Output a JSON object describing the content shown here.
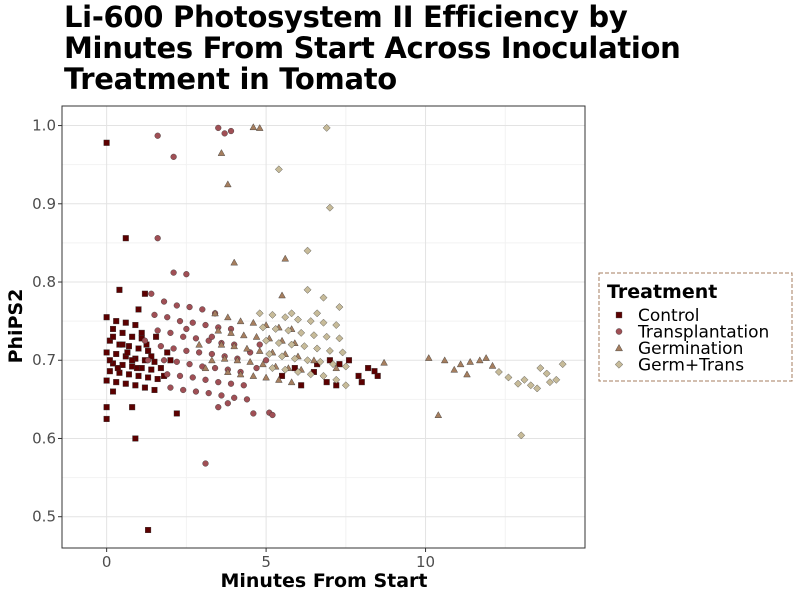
{
  "chart_data": {
    "type": "scatter",
    "title": "Li-600 Photosystem II Efficiency by Minutes From Start Across Inoculation Treatment in Tomato",
    "xlabel": "Minutes From Start",
    "ylabel": "PhiPS2",
    "xlim": [
      -1.4,
      15
    ],
    "ylim": [
      0.46,
      1.025
    ],
    "xticks": [
      0,
      5,
      10
    ],
    "yticks": [
      0.5,
      0.6,
      0.7,
      0.8,
      0.9,
      1.0
    ],
    "ytick_labels": [
      "0.5",
      "0.6",
      "0.7",
      "0.8",
      "0.9",
      "1.0"
    ],
    "grid": true,
    "legend": {
      "title": "Treatment",
      "position": "right"
    },
    "series": [
      {
        "name": "Control",
        "marker": "square",
        "color": "#5c0000",
        "points": [
          [
            0.0,
            0.978
          ],
          [
            0.6,
            0.856
          ],
          [
            1.2,
            0.785
          ],
          [
            0.4,
            0.79
          ],
          [
            1.0,
            0.765
          ],
          [
            0.0,
            0.755
          ],
          [
            0.3,
            0.75
          ],
          [
            0.6,
            0.748
          ],
          [
            0.9,
            0.745
          ],
          [
            0.2,
            0.74
          ],
          [
            0.5,
            0.735
          ],
          [
            0.8,
            0.73
          ],
          [
            1.1,
            0.728
          ],
          [
            0.1,
            0.725
          ],
          [
            0.4,
            0.72
          ],
          [
            0.7,
            0.718
          ],
          [
            1.0,
            0.715
          ],
          [
            1.3,
            0.712
          ],
          [
            0.0,
            0.71
          ],
          [
            0.3,
            0.708
          ],
          [
            0.6,
            0.705
          ],
          [
            0.9,
            0.702
          ],
          [
            1.2,
            0.7
          ],
          [
            1.5,
            0.698
          ],
          [
            0.2,
            0.696
          ],
          [
            0.5,
            0.694
          ],
          [
            0.8,
            0.692
          ],
          [
            1.1,
            0.69
          ],
          [
            1.4,
            0.688
          ],
          [
            0.1,
            0.686
          ],
          [
            0.4,
            0.684
          ],
          [
            0.7,
            0.682
          ],
          [
            1.0,
            0.68
          ],
          [
            1.3,
            0.678
          ],
          [
            1.6,
            0.676
          ],
          [
            0.0,
            0.674
          ],
          [
            0.3,
            0.672
          ],
          [
            0.6,
            0.67
          ],
          [
            0.9,
            0.668
          ],
          [
            1.2,
            0.665
          ],
          [
            1.5,
            0.662
          ],
          [
            0.2,
            0.66
          ],
          [
            0.5,
            0.72
          ],
          [
            0.8,
            0.7
          ],
          [
            1.1,
            0.735
          ],
          [
            1.4,
            0.705
          ],
          [
            1.7,
            0.69
          ],
          [
            1.9,
            0.71
          ],
          [
            2.0,
            0.7
          ],
          [
            1.8,
            0.68
          ],
          [
            0.0,
            0.64
          ],
          [
            0.0,
            0.625
          ],
          [
            0.9,
            0.6
          ],
          [
            0.8,
            0.64
          ],
          [
            2.2,
            0.632
          ],
          [
            1.3,
            0.483
          ],
          [
            0.1,
            0.7
          ],
          [
            0.2,
            0.73
          ],
          [
            0.35,
            0.69
          ],
          [
            0.65,
            0.71
          ],
          [
            0.95,
            0.69
          ],
          [
            1.25,
            0.72
          ],
          [
            1.55,
            0.73
          ],
          [
            5.5,
            0.68
          ],
          [
            6.1,
            0.668
          ],
          [
            6.5,
            0.685
          ],
          [
            6.9,
            0.672
          ],
          [
            7.3,
            0.695
          ],
          [
            7.6,
            0.7
          ],
          [
            7.9,
            0.68
          ],
          [
            8.2,
            0.69
          ],
          [
            8.5,
            0.68
          ],
          [
            7.0,
            0.7
          ],
          [
            6.6,
            0.695
          ],
          [
            5.9,
            0.69
          ],
          [
            7.2,
            0.668
          ],
          [
            8.0,
            0.672
          ],
          [
            8.4,
            0.686
          ]
        ]
      },
      {
        "name": "Transplantation",
        "marker": "circle",
        "color": "#a04f55",
        "points": [
          [
            1.6,
            0.987
          ],
          [
            2.1,
            0.96
          ],
          [
            3.5,
            0.997
          ],
          [
            3.7,
            0.99
          ],
          [
            3.9,
            0.993
          ],
          [
            1.6,
            0.856
          ],
          [
            2.5,
            0.81
          ],
          [
            2.1,
            0.812
          ],
          [
            1.4,
            0.785
          ],
          [
            1.8,
            0.775
          ],
          [
            2.2,
            0.77
          ],
          [
            2.6,
            0.768
          ],
          [
            3.0,
            0.765
          ],
          [
            3.4,
            0.76
          ],
          [
            1.5,
            0.758
          ],
          [
            1.9,
            0.755
          ],
          [
            2.3,
            0.75
          ],
          [
            2.7,
            0.748
          ],
          [
            3.1,
            0.745
          ],
          [
            3.5,
            0.742
          ],
          [
            3.9,
            0.74
          ],
          [
            1.6,
            0.738
          ],
          [
            2.0,
            0.735
          ],
          [
            2.4,
            0.73
          ],
          [
            2.8,
            0.728
          ],
          [
            3.2,
            0.725
          ],
          [
            3.6,
            0.722
          ],
          [
            4.0,
            0.72
          ],
          [
            1.7,
            0.718
          ],
          [
            2.1,
            0.715
          ],
          [
            2.5,
            0.712
          ],
          [
            2.9,
            0.71
          ],
          [
            3.3,
            0.708
          ],
          [
            3.7,
            0.705
          ],
          [
            4.1,
            0.702
          ],
          [
            1.8,
            0.7
          ],
          [
            2.2,
            0.698
          ],
          [
            2.6,
            0.695
          ],
          [
            3.0,
            0.692
          ],
          [
            3.4,
            0.69
          ],
          [
            3.8,
            0.688
          ],
          [
            4.2,
            0.685
          ],
          [
            1.9,
            0.682
          ],
          [
            2.3,
            0.68
          ],
          [
            2.7,
            0.678
          ],
          [
            3.1,
            0.675
          ],
          [
            3.5,
            0.672
          ],
          [
            3.9,
            0.67
          ],
          [
            4.3,
            0.668
          ],
          [
            2.0,
            0.665
          ],
          [
            2.4,
            0.662
          ],
          [
            2.8,
            0.66
          ],
          [
            3.2,
            0.658
          ],
          [
            3.6,
            0.655
          ],
          [
            4.0,
            0.652
          ],
          [
            4.4,
            0.65
          ],
          [
            3.8,
            0.645
          ],
          [
            3.5,
            0.64
          ],
          [
            4.6,
            0.632
          ],
          [
            5.1,
            0.633
          ],
          [
            5.2,
            0.63
          ],
          [
            3.1,
            0.568
          ],
          [
            2.5,
            0.74
          ],
          [
            3.3,
            0.73
          ],
          [
            4.5,
            0.71
          ],
          [
            4.7,
            0.69
          ],
          [
            4.8,
            0.72
          ],
          [
            5.0,
            0.7
          ],
          [
            1.3,
            0.7
          ],
          [
            1.2,
            0.725
          ]
        ]
      },
      {
        "name": "Germination",
        "marker": "triangle",
        "color": "#a57e5f",
        "points": [
          [
            4.6,
            0.998
          ],
          [
            4.8,
            0.997
          ],
          [
            3.6,
            0.965
          ],
          [
            3.8,
            0.925
          ],
          [
            4.0,
            0.825
          ],
          [
            5.6,
            0.83
          ],
          [
            5.5,
            0.783
          ],
          [
            3.4,
            0.76
          ],
          [
            3.8,
            0.755
          ],
          [
            4.2,
            0.75
          ],
          [
            4.6,
            0.748
          ],
          [
            5.0,
            0.745
          ],
          [
            5.4,
            0.742
          ],
          [
            5.8,
            0.74
          ],
          [
            3.5,
            0.738
          ],
          [
            3.9,
            0.735
          ],
          [
            4.3,
            0.732
          ],
          [
            4.7,
            0.73
          ],
          [
            5.1,
            0.728
          ],
          [
            5.5,
            0.725
          ],
          [
            5.9,
            0.722
          ],
          [
            3.6,
            0.72
          ],
          [
            4.0,
            0.718
          ],
          [
            4.4,
            0.715
          ],
          [
            4.8,
            0.712
          ],
          [
            5.2,
            0.71
          ],
          [
            5.6,
            0.708
          ],
          [
            6.0,
            0.705
          ],
          [
            3.7,
            0.702
          ],
          [
            4.1,
            0.7
          ],
          [
            4.5,
            0.698
          ],
          [
            4.9,
            0.695
          ],
          [
            5.3,
            0.692
          ],
          [
            5.7,
            0.69
          ],
          [
            6.1,
            0.688
          ],
          [
            3.8,
            0.685
          ],
          [
            4.2,
            0.682
          ],
          [
            4.6,
            0.68
          ],
          [
            5.0,
            0.678
          ],
          [
            5.4,
            0.675
          ],
          [
            5.8,
            0.672
          ],
          [
            3.3,
            0.7
          ],
          [
            2.9,
            0.72
          ],
          [
            3.1,
            0.69
          ],
          [
            10.1,
            0.703
          ],
          [
            10.4,
            0.63
          ],
          [
            10.6,
            0.7
          ],
          [
            10.9,
            0.688
          ],
          [
            11.1,
            0.695
          ],
          [
            11.4,
            0.698
          ],
          [
            11.7,
            0.7
          ],
          [
            11.9,
            0.703
          ],
          [
            12.1,
            0.693
          ],
          [
            11.3,
            0.682
          ],
          [
            6.5,
            0.7
          ],
          [
            7.2,
            0.69
          ],
          [
            8.7,
            0.697
          ]
        ]
      },
      {
        "name": "Germ+Trans",
        "marker": "diamond",
        "color": "#c7bb99",
        "points": [
          [
            6.9,
            0.997
          ],
          [
            5.4,
            0.944
          ],
          [
            7.0,
            0.895
          ],
          [
            6.3,
            0.84
          ],
          [
            6.3,
            0.79
          ],
          [
            6.8,
            0.78
          ],
          [
            7.3,
            0.768
          ],
          [
            4.8,
            0.76
          ],
          [
            5.2,
            0.758
          ],
          [
            5.6,
            0.755
          ],
          [
            6.0,
            0.752
          ],
          [
            6.4,
            0.75
          ],
          [
            6.8,
            0.748
          ],
          [
            7.2,
            0.745
          ],
          [
            4.9,
            0.742
          ],
          [
            5.3,
            0.74
          ],
          [
            5.7,
            0.738
          ],
          [
            6.1,
            0.735
          ],
          [
            6.5,
            0.732
          ],
          [
            6.9,
            0.73
          ],
          [
            7.3,
            0.728
          ],
          [
            5.0,
            0.725
          ],
          [
            5.4,
            0.722
          ],
          [
            5.8,
            0.72
          ],
          [
            6.2,
            0.718
          ],
          [
            6.6,
            0.715
          ],
          [
            7.0,
            0.712
          ],
          [
            7.4,
            0.71
          ],
          [
            5.1,
            0.708
          ],
          [
            5.5,
            0.705
          ],
          [
            5.9,
            0.702
          ],
          [
            6.3,
            0.7
          ],
          [
            6.7,
            0.698
          ],
          [
            7.1,
            0.695
          ],
          [
            7.5,
            0.692
          ],
          [
            5.2,
            0.69
          ],
          [
            5.6,
            0.688
          ],
          [
            6.0,
            0.685
          ],
          [
            6.4,
            0.682
          ],
          [
            6.8,
            0.68
          ],
          [
            7.2,
            0.675
          ],
          [
            7.5,
            0.668
          ],
          [
            12.3,
            0.685
          ],
          [
            12.6,
            0.678
          ],
          [
            12.9,
            0.67
          ],
          [
            13.1,
            0.675
          ],
          [
            13.3,
            0.668
          ],
          [
            13.5,
            0.664
          ],
          [
            13.6,
            0.69
          ],
          [
            13.8,
            0.683
          ],
          [
            13.9,
            0.672
          ],
          [
            14.1,
            0.675
          ],
          [
            14.3,
            0.695
          ],
          [
            13.0,
            0.604
          ],
          [
            5.8,
            0.76
          ],
          [
            6.6,
            0.76
          ]
        ]
      }
    ]
  }
}
